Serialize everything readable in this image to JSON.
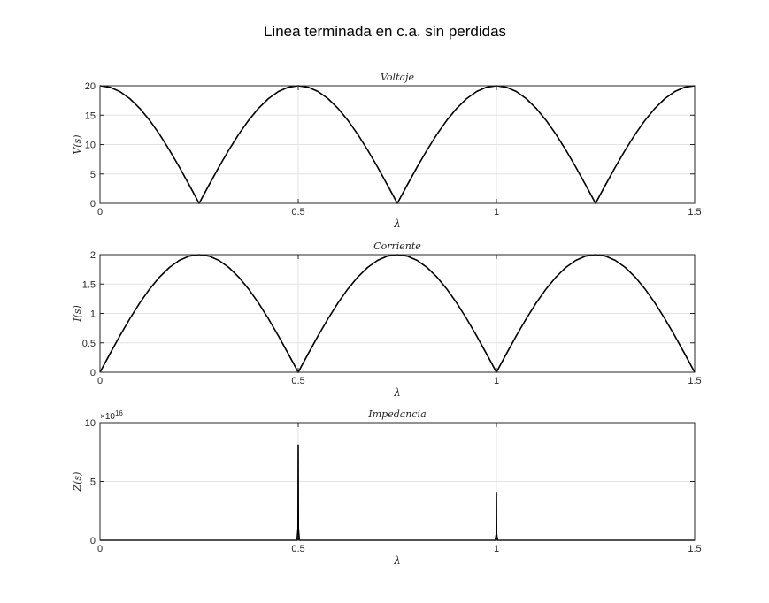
{
  "figure": {
    "title": "Linea terminada en c.a. sin perdidas"
  },
  "chart_data": [
    {
      "type": "line",
      "title": "Voltaje",
      "xlabel": "λ",
      "ylabel": "V(s)",
      "xlim": [
        0,
        1.5
      ],
      "ylim": [
        0,
        20
      ],
      "xticks": [
        0,
        0.5,
        1,
        1.5
      ],
      "xtick_labels": [
        "0",
        "0.5",
        "1",
        "1.5"
      ],
      "yticks": [
        0,
        5,
        10,
        15,
        20
      ],
      "ytick_labels": [
        "0",
        "5",
        "10",
        "15",
        "20"
      ],
      "y_exponent_label": "",
      "grid": true,
      "series": [
        {
          "x": [
            0,
            0.025,
            0.05,
            0.075,
            0.1,
            0.125,
            0.15,
            0.175,
            0.2,
            0.225,
            0.25,
            0.275,
            0.3,
            0.325,
            0.35,
            0.375,
            0.4,
            0.425,
            0.45,
            0.475,
            0.5,
            0.525,
            0.55,
            0.575,
            0.6,
            0.625,
            0.65,
            0.675,
            0.7,
            0.725,
            0.75,
            0.775,
            0.8,
            0.825,
            0.85,
            0.875,
            0.9,
            0.925,
            0.95,
            0.975,
            1,
            1.025,
            1.05,
            1.075,
            1.1,
            1.125,
            1.15,
            1.175,
            1.2,
            1.225,
            1.25,
            1.275,
            1.3,
            1.325,
            1.35,
            1.375,
            1.4,
            1.425,
            1.45,
            1.475,
            1.5
          ],
          "y": [
            20,
            19.75,
            19.02,
            17.82,
            16.18,
            14.14,
            11.76,
            9.08,
            6.18,
            3.13,
            0,
            3.13,
            6.18,
            9.08,
            11.76,
            14.14,
            16.18,
            17.82,
            19.02,
            19.75,
            20,
            19.75,
            19.02,
            17.82,
            16.18,
            14.14,
            11.76,
            9.08,
            6.18,
            3.13,
            0,
            3.13,
            6.18,
            9.08,
            11.76,
            14.14,
            16.18,
            17.82,
            19.02,
            19.75,
            20,
            19.75,
            19.02,
            17.82,
            16.18,
            14.14,
            11.76,
            9.08,
            6.18,
            3.13,
            0,
            3.13,
            6.18,
            9.08,
            11.76,
            14.14,
            16.18,
            17.82,
            19.02,
            19.75,
            20
          ]
        }
      ]
    },
    {
      "type": "line",
      "title": "Corriente",
      "xlabel": "λ",
      "ylabel": "I(s)",
      "xlim": [
        0,
        1.5
      ],
      "ylim": [
        0,
        2
      ],
      "xticks": [
        0,
        0.5,
        1,
        1.5
      ],
      "xtick_labels": [
        "0",
        "0.5",
        "1",
        "1.5"
      ],
      "yticks": [
        0,
        0.5,
        1,
        1.5,
        2
      ],
      "ytick_labels": [
        "0",
        "0.5",
        "1",
        "1.5",
        "2"
      ],
      "y_exponent_label": "",
      "grid": true,
      "series": [
        {
          "x": [
            0,
            0.025,
            0.05,
            0.075,
            0.1,
            0.125,
            0.15,
            0.175,
            0.2,
            0.225,
            0.25,
            0.275,
            0.3,
            0.325,
            0.35,
            0.375,
            0.4,
            0.425,
            0.45,
            0.475,
            0.5,
            0.525,
            0.55,
            0.575,
            0.6,
            0.625,
            0.65,
            0.675,
            0.7,
            0.725,
            0.75,
            0.775,
            0.8,
            0.825,
            0.85,
            0.875,
            0.9,
            0.925,
            0.95,
            0.975,
            1,
            1.025,
            1.05,
            1.075,
            1.1,
            1.125,
            1.15,
            1.175,
            1.2,
            1.225,
            1.25,
            1.275,
            1.3,
            1.325,
            1.35,
            1.375,
            1.4,
            1.425,
            1.45,
            1.475,
            1.5
          ],
          "y": [
            0,
            0.313,
            0.618,
            0.908,
            1.176,
            1.414,
            1.618,
            1.782,
            1.902,
            1.975,
            2,
            1.975,
            1.902,
            1.782,
            1.618,
            1.414,
            1.176,
            0.908,
            0.618,
            0.313,
            0,
            0.313,
            0.618,
            0.908,
            1.176,
            1.414,
            1.618,
            1.782,
            1.902,
            1.975,
            2,
            1.975,
            1.902,
            1.782,
            1.618,
            1.414,
            1.176,
            0.908,
            0.618,
            0.313,
            0,
            0.313,
            0.618,
            0.908,
            1.176,
            1.414,
            1.618,
            1.782,
            1.902,
            1.975,
            2,
            1.975,
            1.902,
            1.782,
            1.618,
            1.414,
            1.176,
            0.908,
            0.618,
            0.313,
            0
          ]
        }
      ]
    },
    {
      "type": "line",
      "title": "Impedancia",
      "xlabel": "λ",
      "ylabel": "Z(s)",
      "xlim": [
        0,
        1.5
      ],
      "ylim": [
        0,
        100000000000000000
      ],
      "xticks": [
        0,
        0.5,
        1,
        1.5
      ],
      "xtick_labels": [
        "0",
        "0.5",
        "1",
        "1.5"
      ],
      "yticks": [
        0,
        50000000000000000,
        100000000000000000
      ],
      "ytick_labels": [
        "0",
        "5",
        "10"
      ],
      "y_exponent_label": "×10^16",
      "grid": true,
      "series": [
        {
          "x": [
            0,
            0.497,
            0.4995,
            0.5,
            0.5005,
            0.503,
            0.997,
            0.9995,
            1,
            1.0005,
            1.003,
            1.5
          ],
          "y": [
            0,
            0,
            10000000000000000,
            81000000000000000,
            10000000000000000,
            0,
            0,
            5000000000000000,
            40000000000000000,
            5000000000000000,
            0,
            0
          ]
        }
      ]
    }
  ]
}
